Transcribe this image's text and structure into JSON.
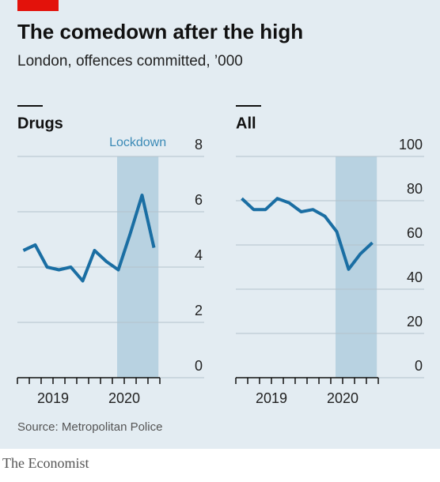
{
  "header": {
    "title": "The comedown after the high",
    "subtitle": "London, offences committed, ’000"
  },
  "source": "Source: Metropolitan Police",
  "footer": "The Economist",
  "chart_data": [
    {
      "type": "line",
      "title": "Drugs",
      "color": "#1a6ea3",
      "x": [
        2019.083,
        2019.25,
        2019.417,
        2019.583,
        2019.75,
        2019.917,
        2020.083,
        2020.25,
        2020.417,
        2020.583,
        2020.75,
        2020.917
      ],
      "values": [
        4.6,
        4.8,
        4.0,
        3.9,
        4.0,
        3.5,
        4.6,
        4.2,
        3.9,
        5.2,
        6.6,
        4.7
      ],
      "xlim": [
        2019,
        2021
      ],
      "xticks": [
        {
          "value": 2019.5,
          "label": "2019"
        },
        {
          "value": 2020.5,
          "label": "2020"
        }
      ],
      "xminor_ticks": [
        2019,
        2019.167,
        2019.333,
        2019.5,
        2019.667,
        2019.833,
        2020,
        2020.167,
        2020.333,
        2020.5,
        2020.667,
        2020.833,
        2021
      ],
      "ylim": [
        0,
        8
      ],
      "yticks": [
        0,
        2,
        4,
        6,
        8
      ],
      "grid": true,
      "highlight": {
        "range": [
          2020.4,
          2020.98
        ],
        "label": "Lockdown",
        "color": "#b8d2e1"
      }
    },
    {
      "type": "line",
      "title": "All",
      "color": "#1a6ea3",
      "x": [
        2019.083,
        2019.25,
        2019.417,
        2019.583,
        2019.75,
        2019.917,
        2020.083,
        2020.25,
        2020.417,
        2020.583,
        2020.75,
        2020.917
      ],
      "values": [
        81,
        76,
        76,
        81,
        79,
        75,
        76,
        73,
        66,
        49,
        56,
        61
      ],
      "xlim": [
        2019,
        2021
      ],
      "xticks": [
        {
          "value": 2019.5,
          "label": "2019"
        },
        {
          "value": 2020.5,
          "label": "2020"
        }
      ],
      "xminor_ticks": [
        2019,
        2019.167,
        2019.333,
        2019.5,
        2019.667,
        2019.833,
        2020,
        2020.167,
        2020.333,
        2020.5,
        2020.667,
        2020.833,
        2021
      ],
      "ylim": [
        0,
        100
      ],
      "yticks": [
        0,
        20,
        40,
        60,
        80,
        100
      ],
      "grid": true,
      "highlight": {
        "range": [
          2020.4,
          2020.98
        ],
        "color": "#b8d2e1"
      }
    }
  ]
}
